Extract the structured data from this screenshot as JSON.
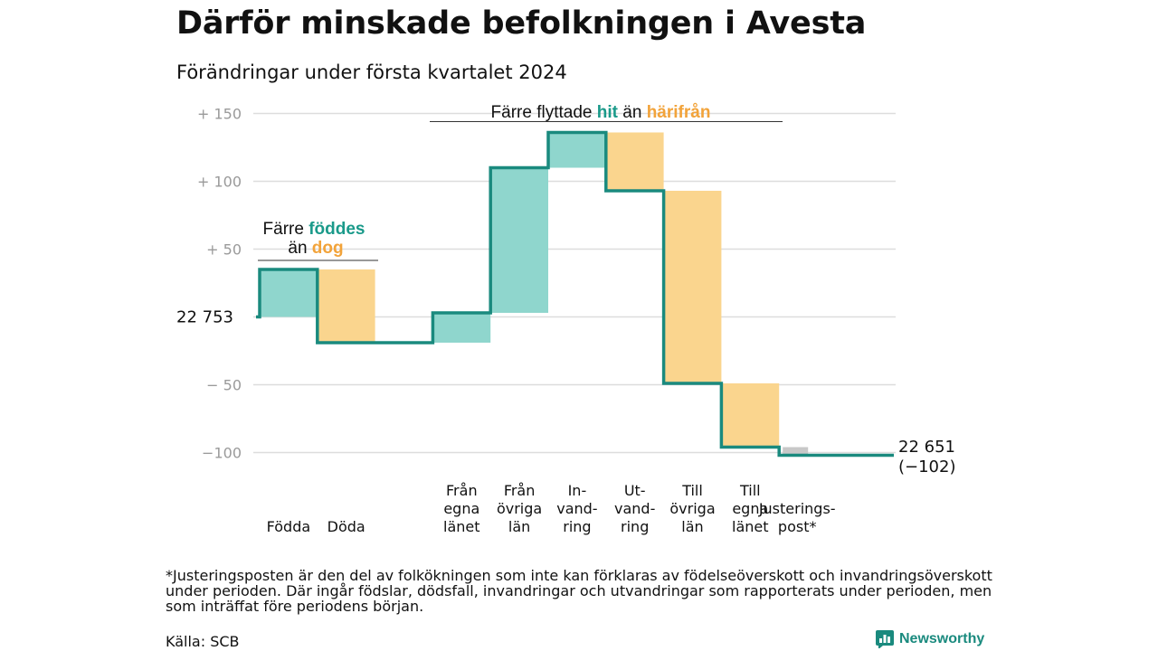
{
  "title": "Därför minskade befolkningen i Avesta",
  "subtitle": "Förändringar under första kvartalet 2024",
  "chart_data": {
    "type": "waterfall",
    "start_label": "22  753",
    "start_value": 22753,
    "ylim": [
      -110,
      155
    ],
    "y_ticks": [
      {
        "value": 150,
        "label": "+  150"
      },
      {
        "value": 100,
        "label": "+  100"
      },
      {
        "value": 50,
        "label": "+  50"
      },
      {
        "value": 0,
        "label": ""
      },
      {
        "value": -50,
        "label": "−  50"
      },
      {
        "value": -100,
        "label": "−100"
      }
    ],
    "steps": [
      {
        "label": [
          "Födda"
        ],
        "change": 35,
        "kind": "in"
      },
      {
        "label": [
          "Döda"
        ],
        "change": -54,
        "kind": "out"
      },
      {
        "label": [
          ""
        ],
        "change": 0,
        "kind": "gap"
      },
      {
        "label": [
          "Från",
          "egna",
          "länet"
        ],
        "change": 22,
        "kind": "in"
      },
      {
        "label": [
          "Från",
          "övriga",
          "län"
        ],
        "change": 107,
        "kind": "in"
      },
      {
        "label": [
          "In-",
          "vand-",
          "ring"
        ],
        "change": 26,
        "kind": "in"
      },
      {
        "label": [
          "Ut-",
          "vand-",
          "ring"
        ],
        "change": -43,
        "kind": "out"
      },
      {
        "label": [
          "Till",
          "övriga",
          "län"
        ],
        "change": -142,
        "kind": "out"
      },
      {
        "label": [
          "Till",
          "egna",
          "länet"
        ],
        "change": -47,
        "kind": "out"
      },
      {
        "label": [
          "Justerings-",
          "post*"
        ],
        "change": -6,
        "kind": "adjustment"
      }
    ],
    "end_label": [
      "22 651",
      "(−102)"
    ],
    "annotations": [
      {
        "parts": [
          {
            "text": "Färre ",
            "style": "plain"
          },
          {
            "text": "föddes",
            "style": "teal"
          }
        ],
        "parts2": [
          {
            "text": "än ",
            "style": "plain"
          },
          {
            "text": "dog",
            "style": "orange"
          }
        ]
      },
      {
        "parts": [
          {
            "text": "Färre flyttade ",
            "style": "plain"
          },
          {
            "text": "hit",
            "style": "teal"
          },
          {
            "text": " än ",
            "style": "plain"
          },
          {
            "text": "härifrån",
            "style": "orange"
          }
        ]
      }
    ],
    "colors": {
      "in": "#8fd6cd",
      "out": "#fad58e",
      "adjustment": "#c8c8c8",
      "line": "#1a8a7e",
      "grid": "#dddddd"
    }
  },
  "footnote": "*Justeringsposten är den del av folkökningen som inte kan förklaras av födelseöverskott och invandringsöverskott under perioden. Där ingår födslar, dödsfall, invandringar och utvandringar som rapporterats under perioden, men som inträffat före periodens början.",
  "source": "Källa: SCB",
  "brand": {
    "name": "Newsworthy",
    "icon": "newsworthy-logo-icon"
  }
}
